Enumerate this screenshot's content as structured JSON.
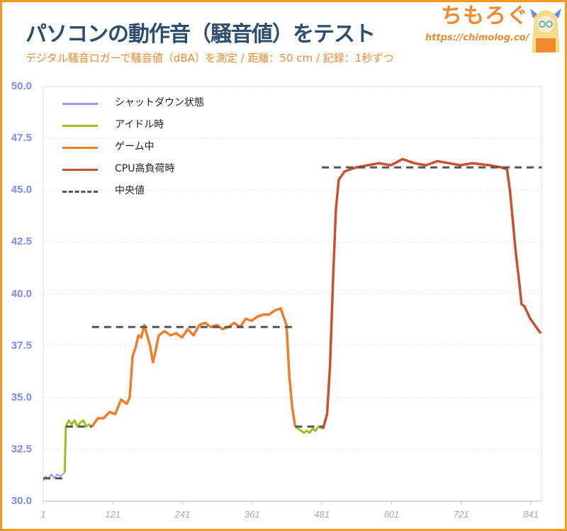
{
  "header": {
    "title": "パソコンの動作音（騒音値）をテスト",
    "subtitle": "デジタル騒音ロガーで騒音値（dBA）を測定 / 距離：50 cm / 記録：1秒ずつ",
    "logo_text": "ちもろぐ",
    "logo_url": "https://chimolog.co/"
  },
  "colors": {
    "frame": "#f39a1e",
    "title": "#2d4d6e",
    "accent": "#f08a30",
    "ytick": "#7b8cf0",
    "xtick": "#aaaaaa"
  },
  "chart_data": {
    "type": "line",
    "title": "",
    "xlabel": "",
    "ylabel": "",
    "xlim": [
      1,
      860
    ],
    "ylim": [
      30,
      50
    ],
    "grid": true,
    "legend_position": "top-left",
    "x_ticks": [
      "1",
      "121",
      "241",
      "361",
      "481",
      "601",
      "721",
      "841"
    ],
    "y_ticks": [
      "30.0",
      "32.5",
      "35.0",
      "37.5",
      "40.0",
      "42.5",
      "45.0",
      "47.5",
      "50.0"
    ],
    "series": [
      {
        "name": "シャットダウン状態",
        "color": "#9b98f5",
        "dashed": false,
        "points": [
          [
            1,
            31.0
          ],
          [
            5,
            31.2
          ],
          [
            10,
            31.1
          ],
          [
            15,
            31.3
          ],
          [
            20,
            31.1
          ],
          [
            25,
            31.3
          ],
          [
            30,
            31.2
          ],
          [
            35,
            31.3
          ],
          [
            38,
            31.4
          ]
        ]
      },
      {
        "name": "アイドル時",
        "color": "#9cc31c",
        "dashed": false,
        "points": [
          [
            38,
            31.4
          ],
          [
            40,
            33.6
          ],
          [
            45,
            33.9
          ],
          [
            50,
            33.7
          ],
          [
            55,
            33.9
          ],
          [
            60,
            33.6
          ],
          [
            65,
            33.8
          ],
          [
            70,
            33.9
          ],
          [
            75,
            33.6
          ],
          [
            80,
            33.7
          ],
          [
            85,
            33.6
          ]
        ],
        "points2": [
          [
            435,
            33.6
          ],
          [
            440,
            33.5
          ],
          [
            445,
            33.4
          ],
          [
            450,
            33.3
          ],
          [
            455,
            33.4
          ],
          [
            460,
            33.3
          ],
          [
            465,
            33.5
          ],
          [
            470,
            33.4
          ],
          [
            475,
            33.6
          ],
          [
            483,
            33.5
          ]
        ]
      },
      {
        "name": "ゲーム中",
        "color": "#f07d2a",
        "dashed": false,
        "points": [
          [
            85,
            33.6
          ],
          [
            95,
            34.0
          ],
          [
            105,
            34.0
          ],
          [
            115,
            34.3
          ],
          [
            125,
            34.2
          ],
          [
            135,
            34.9
          ],
          [
            145,
            34.7
          ],
          [
            150,
            35.0
          ],
          [
            155,
            37.0
          ],
          [
            160,
            37.4
          ],
          [
            165,
            38.0
          ],
          [
            170,
            37.9
          ],
          [
            175,
            38.5
          ],
          [
            180,
            38.0
          ],
          [
            185,
            37.5
          ],
          [
            190,
            36.7
          ],
          [
            195,
            37.3
          ],
          [
            200,
            38.0
          ],
          [
            210,
            38.2
          ],
          [
            220,
            38.0
          ],
          [
            230,
            38.1
          ],
          [
            240,
            37.9
          ],
          [
            250,
            38.3
          ],
          [
            260,
            38.0
          ],
          [
            270,
            38.5
          ],
          [
            280,
            38.6
          ],
          [
            290,
            38.4
          ],
          [
            300,
            38.5
          ],
          [
            310,
            38.3
          ],
          [
            320,
            38.4
          ],
          [
            330,
            38.6
          ],
          [
            340,
            38.4
          ],
          [
            350,
            38.8
          ],
          [
            360,
            38.7
          ],
          [
            370,
            38.9
          ],
          [
            380,
            39.0
          ],
          [
            390,
            39.0
          ],
          [
            400,
            39.2
          ],
          [
            410,
            39.3
          ],
          [
            420,
            38.5
          ],
          [
            425,
            36.0
          ],
          [
            430,
            34.5
          ],
          [
            435,
            33.6
          ]
        ]
      },
      {
        "name": "CPU高負荷時",
        "color": "#cc5030",
        "dashed": false,
        "points": [
          [
            483,
            33.5
          ],
          [
            490,
            34.2
          ],
          [
            495,
            36.5
          ],
          [
            500,
            40.5
          ],
          [
            505,
            44.0
          ],
          [
            510,
            45.5
          ],
          [
            520,
            45.9
          ],
          [
            530,
            46.0
          ],
          [
            540,
            46.1
          ],
          [
            560,
            46.2
          ],
          [
            580,
            46.3
          ],
          [
            600,
            46.2
          ],
          [
            620,
            46.5
          ],
          [
            640,
            46.3
          ],
          [
            660,
            46.2
          ],
          [
            680,
            46.4
          ],
          [
            700,
            46.3
          ],
          [
            720,
            46.2
          ],
          [
            740,
            46.3
          ],
          [
            770,
            46.2
          ],
          [
            790,
            46.1
          ],
          [
            800,
            46.0
          ],
          [
            805,
            45.0
          ],
          [
            810,
            43.5
          ],
          [
            815,
            42.0
          ],
          [
            820,
            40.8
          ],
          [
            825,
            39.5
          ],
          [
            830,
            39.4
          ],
          [
            840,
            38.8
          ],
          [
            850,
            38.4
          ],
          [
            858,
            38.1
          ]
        ]
      },
      {
        "name": "中央値",
        "color": "#555555",
        "dashed": true,
        "segments": [
          [
            [
              1,
              31.1
            ],
            [
              38,
              31.1
            ]
          ],
          [
            [
              40,
              33.6
            ],
            [
              85,
              33.6
            ]
          ],
          [
            [
              85,
              38.4
            ],
            [
              433,
              38.4
            ]
          ],
          [
            [
              435,
              33.6
            ],
            [
              483,
              33.6
            ]
          ],
          [
            [
              481,
              46.1
            ],
            [
              860,
              46.1
            ]
          ]
        ]
      }
    ]
  }
}
